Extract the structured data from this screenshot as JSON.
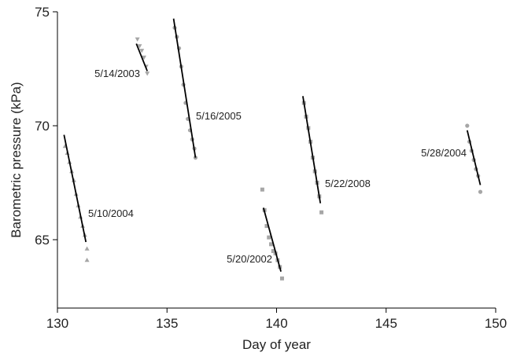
{
  "chart_data": {
    "type": "scatter",
    "title": "",
    "xlabel": "Day of year",
    "ylabel": "Barometric pressure (kPa)",
    "xlim": [
      130,
      150
    ],
    "ylim": [
      62,
      75
    ],
    "x_ticks": [
      130,
      135,
      140,
      145,
      150
    ],
    "y_ticks": [
      65,
      70,
      75
    ],
    "x_tick_labels": [
      "130",
      "135",
      "140",
      "145",
      "150"
    ],
    "y_tick_labels": [
      "65",
      "70",
      "75"
    ],
    "point_color": "#a6a6a6",
    "line_color": "#000000",
    "series": [
      {
        "label": "5/10/2004",
        "marker": "triangle",
        "fit": [
          [
            130.3,
            69.6
          ],
          [
            131.3,
            64.9
          ]
        ],
        "points": [
          [
            130.35,
            69.1
          ],
          [
            130.45,
            68.8
          ],
          [
            130.55,
            68.4
          ],
          [
            130.65,
            68.0
          ],
          [
            130.75,
            67.6
          ],
          [
            130.85,
            67.0
          ],
          [
            130.95,
            66.5
          ],
          [
            131.05,
            66.0
          ],
          [
            131.15,
            65.6
          ],
          [
            131.25,
            65.2
          ],
          [
            131.35,
            64.6
          ],
          [
            131.35,
            64.1
          ]
        ]
      },
      {
        "label": "5/14/2003",
        "marker": "triangle-down",
        "fit": [
          [
            133.6,
            73.6
          ],
          [
            134.1,
            72.4
          ]
        ],
        "points": [
          [
            133.65,
            73.8
          ],
          [
            133.75,
            73.5
          ],
          [
            133.85,
            73.3
          ],
          [
            133.95,
            73.0
          ],
          [
            134.05,
            72.6
          ],
          [
            134.1,
            72.3
          ]
        ]
      },
      {
        "label": "5/16/2005",
        "marker": "circle",
        "fit": [
          [
            135.3,
            74.7
          ],
          [
            136.3,
            68.6
          ]
        ],
        "points": [
          [
            135.35,
            74.3
          ],
          [
            135.45,
            73.9
          ],
          [
            135.55,
            73.4
          ],
          [
            135.65,
            72.6
          ],
          [
            135.75,
            71.8
          ],
          [
            135.85,
            71.0
          ],
          [
            135.95,
            70.3
          ],
          [
            136.05,
            69.8
          ],
          [
            136.15,
            69.4
          ],
          [
            136.25,
            69.0
          ],
          [
            136.3,
            68.6
          ]
        ]
      },
      {
        "label": "5/20/2002",
        "marker": "square",
        "fit": [
          [
            139.4,
            66.4
          ],
          [
            140.2,
            63.6
          ]
        ],
        "points": [
          [
            139.35,
            67.2
          ],
          [
            139.45,
            66.3
          ],
          [
            139.55,
            65.6
          ],
          [
            139.65,
            65.1
          ],
          [
            139.75,
            64.8
          ],
          [
            139.85,
            64.5
          ],
          [
            139.95,
            64.4
          ],
          [
            140.05,
            64.1
          ],
          [
            140.15,
            63.8
          ],
          [
            140.25,
            63.3
          ]
        ]
      },
      {
        "label": "5/22/2008",
        "marker": "square",
        "fit": [
          [
            141.2,
            71.3
          ],
          [
            142.0,
            66.6
          ]
        ],
        "points": [
          [
            141.25,
            71.0
          ],
          [
            141.35,
            70.4
          ],
          [
            141.45,
            69.9
          ],
          [
            141.55,
            69.3
          ],
          [
            141.65,
            68.6
          ],
          [
            141.75,
            68.0
          ],
          [
            141.85,
            67.5
          ],
          [
            141.95,
            66.9
          ],
          [
            142.05,
            66.2
          ]
        ]
      },
      {
        "label": "5/28/2004",
        "marker": "circle",
        "fit": [
          [
            148.7,
            69.8
          ],
          [
            149.3,
            67.4
          ]
        ],
        "points": [
          [
            148.7,
            70.0
          ],
          [
            148.8,
            69.3
          ],
          [
            148.9,
            68.9
          ],
          [
            149.0,
            68.5
          ],
          [
            149.1,
            68.1
          ],
          [
            149.2,
            67.8
          ],
          [
            149.3,
            67.1
          ]
        ]
      }
    ]
  }
}
